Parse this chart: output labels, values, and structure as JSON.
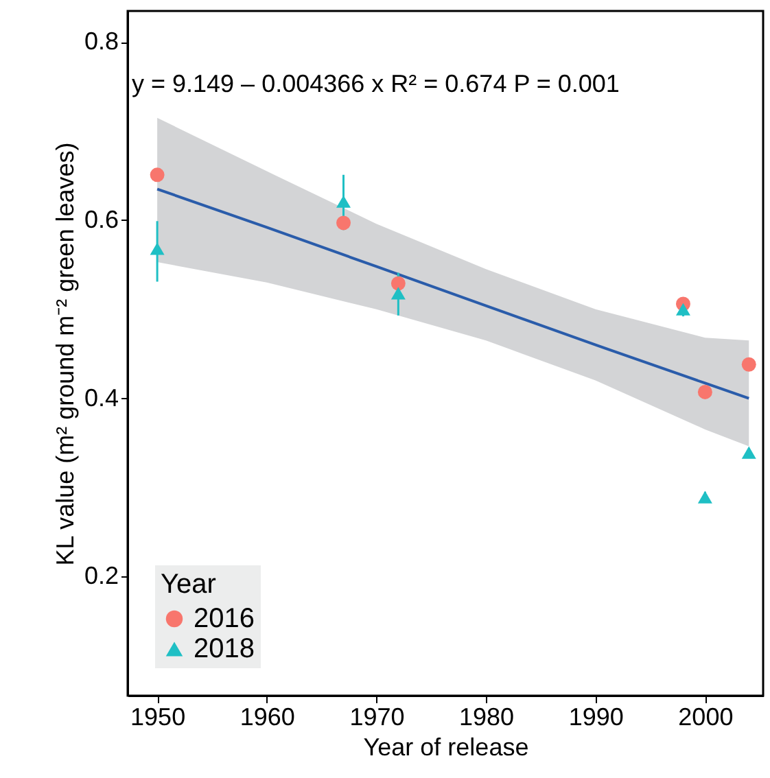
{
  "chart_data": {
    "type": "scatter",
    "xlabel": "Year of release",
    "ylabel": "KL value (m² ground m⁻² green leaves)",
    "legend_title": "Year",
    "legend": "bottom left",
    "grid": false,
    "annotations": [
      "y = 9.149 – 0.004366 x   R² = 0.674   P = 0.001"
    ],
    "xlim": [
      1947.3,
      2005.3
    ],
    "xticks": [
      1950,
      1960,
      1970,
      1980,
      1990,
      2000
    ],
    "ylim": [
      0.066,
      0.835
    ],
    "yticks": [
      0.2,
      0.4,
      0.6,
      0.8
    ],
    "series": [
      {
        "name": "2016",
        "color": "#f8766d",
        "marker": "circle",
        "x": [
          1950,
          1967,
          1972,
          1998,
          2000,
          2004
        ],
        "values": [
          0.651,
          0.597,
          0.529,
          0.506,
          0.407,
          0.438
        ],
        "errors": [
          0.006,
          0.008,
          0.01,
          0.005,
          0.006,
          null
        ]
      },
      {
        "name": "2018",
        "color": "#1fbfc4",
        "marker": "triangle",
        "x": [
          1950,
          1967,
          1972,
          1998,
          2000,
          2004
        ],
        "values": [
          0.568,
          0.621,
          0.518,
          0.5,
          0.289,
          0.339
        ],
        "errors": [
          [
            0.531,
            0.599
          ],
          [
            0.589,
            0.651
          ],
          [
            0.493,
            0.541
          ],
          0.008,
          0.006,
          0.005
        ]
      },
      {
        "type": "line",
        "color": "#2a5caa",
        "x": [
          1950,
          1960,
          1970,
          1980,
          1990,
          2000,
          2004
        ],
        "values": [
          0.635,
          0.592,
          0.548,
          0.504,
          0.46,
          0.417,
          0.4
        ],
        "lower": [
          0.553,
          0.53,
          0.5,
          0.465,
          0.42,
          0.365,
          0.346
        ],
        "upper": [
          0.715,
          0.655,
          0.596,
          0.545,
          0.5,
          0.468,
          0.465
        ]
      }
    ]
  }
}
